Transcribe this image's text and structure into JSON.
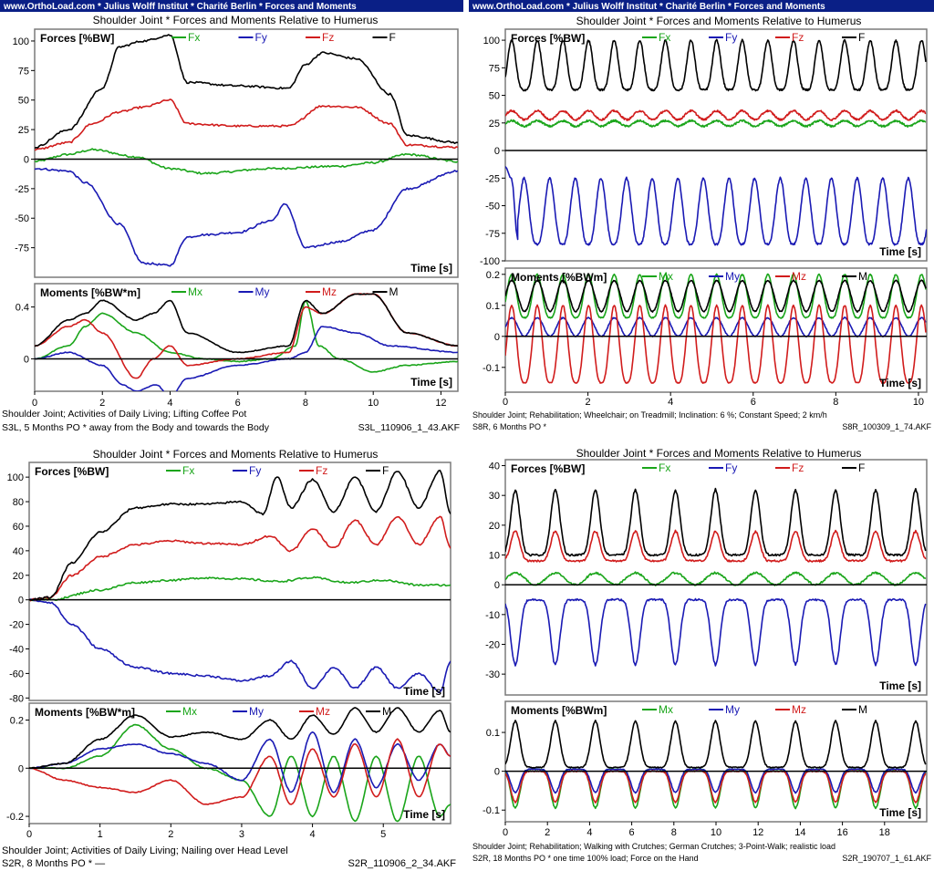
{
  "colors": {
    "fx": "#1aa51a",
    "fy": "#1a1ab4",
    "fz": "#d11c1c",
    "f": "#000000",
    "banner_bg": "#0a1f86",
    "banner_text": "#ffffff",
    "frame": "#7a7a7a"
  },
  "panels": [
    {
      "banner": "www.OrthoLoad.com * Julius Wolff Institut * Charité Berlin * Forces and Moments",
      "title": "Shoulder Joint * Forces and Moments  Relative to Humerus",
      "footer_line1": "Shoulder Joint; Activities of Daily Living; Lifting Coffee Pot",
      "footer_line2_left": "S3L, 5 Months PO  *  away from the Body and towards the Body",
      "footer_line2_right": "S3L_110906_1_43.AKF"
    },
    {
      "banner": "www.OrthoLoad.com * Julius Wolff Institut * Charité Berlin * Forces and Moments",
      "title": "Shoulder Joint * Forces and Moments  Relative to Humerus",
      "footer_line1": "Shoulder Joint; Rehabilitation; Wheelchair; on Treadmill; Inclination: 6 %; Constant Speed; 2 km/h",
      "footer_line2_left": "S8R, 6 Months PO  *",
      "footer_line2_right": "S8R_100309_1_74.AKF"
    },
    {
      "banner": "",
      "title": "Shoulder Joint * Forces and Moments  Relative to Humerus",
      "footer_line1": "Shoulder Joint; Activities of Daily Living; Nailing over Head Level",
      "footer_line2_left": "S2R, 8 Months PO  * —",
      "footer_line2_right": "S2R_110906_2_34.AKF"
    },
    {
      "banner": "",
      "title": "Shoulder Joint * Forces and Moments  Relative to Humerus",
      "footer_line1": "Shoulder Joint; Rehabilitation; Walking with Crutches; German Crutches; 3-Point-Walk; realistic load",
      "footer_line2_left": "S2R, 18 Months PO  *  one time 100% load; Force on the Hand",
      "footer_line2_right": "S2R_190707_1_61.AKF"
    }
  ],
  "chart_data": [
    {
      "type": "line",
      "title": "Forces [%BW]",
      "xlabel": "Time  [s]",
      "xlim": [
        0,
        12.5
      ],
      "ylim": [
        -100,
        110
      ],
      "yticks": [
        100,
        75,
        50,
        25,
        0,
        -25,
        -50,
        -75
      ],
      "series": [
        {
          "name": "Fx",
          "color": "#1aa51a",
          "x": [
            0,
            1,
            1.7,
            3,
            4,
            5,
            7,
            9,
            10,
            11,
            12.5
          ],
          "y": [
            -2,
            4,
            8,
            2,
            -8,
            -12,
            -8,
            -6,
            -3,
            4,
            -2
          ]
        },
        {
          "name": "Fy",
          "color": "#1a1ab4",
          "x": [
            0,
            1,
            1.5,
            2.5,
            3.2,
            4,
            4.5,
            5,
            6,
            7,
            7.4,
            8,
            9,
            10,
            11,
            12.5
          ],
          "y": [
            -8,
            -10,
            -20,
            -55,
            -88,
            -90,
            -66,
            -64,
            -62,
            -52,
            -38,
            -75,
            -70,
            -60,
            -25,
            -10
          ]
        },
        {
          "name": "Fz",
          "color": "#d11c1c",
          "x": [
            0,
            1,
            1.7,
            2.5,
            3.2,
            4,
            4.5,
            6,
            7.5,
            8.5,
            9.5,
            10.5,
            11,
            12.5
          ],
          "y": [
            8,
            14,
            30,
            40,
            44,
            50,
            30,
            28,
            28,
            45,
            44,
            30,
            12,
            10
          ]
        },
        {
          "name": "F",
          "color": "#000000",
          "x": [
            0,
            1,
            2,
            2.5,
            3.2,
            4,
            4.5,
            6,
            7.5,
            8,
            8.5,
            9.5,
            10.5,
            11,
            12.5
          ],
          "y": [
            10,
            25,
            60,
            95,
            100,
            105,
            65,
            62,
            60,
            80,
            90,
            85,
            55,
            20,
            14
          ]
        }
      ]
    },
    {
      "type": "line",
      "title": "Moments  [%BW*m]",
      "xlabel": "Time  [s]",
      "xlim": [
        0,
        12.5
      ],
      "ylim": [
        -0.25,
        0.58
      ],
      "yticks": [
        0.4,
        0
      ],
      "xticks": [
        0,
        2,
        4,
        6,
        8,
        10,
        12
      ],
      "series": [
        {
          "name": "Mx",
          "color": "#1aa51a",
          "x": [
            0,
            1,
            1.5,
            2,
            3,
            4,
            5,
            6,
            7,
            7.7,
            8,
            8.4,
            9,
            10,
            11,
            12.5
          ],
          "y": [
            0,
            0.1,
            0.25,
            0.35,
            0.2,
            0.05,
            0,
            -0.02,
            0,
            0.1,
            0.45,
            0.1,
            0,
            -0.1,
            -0.05,
            -0.02
          ]
        },
        {
          "name": "My",
          "color": "#1a1ab4",
          "x": [
            0,
            1,
            2,
            2.6,
            3,
            3.6,
            4,
            4.5,
            6,
            7.5,
            8,
            8.5,
            9.5,
            10.5,
            12.5
          ],
          "y": [
            0,
            0.05,
            -0.05,
            -0.2,
            -0.25,
            -0.2,
            -0.3,
            -0.15,
            -0.05,
            0,
            0.05,
            0.25,
            0.2,
            0.1,
            0.05
          ]
        },
        {
          "name": "Mz",
          "color": "#d11c1c",
          "x": [
            0,
            1,
            1.5,
            2,
            3,
            3.5,
            4,
            4.5,
            6,
            7.5,
            8,
            8.5,
            9.5,
            10,
            11,
            12.5
          ],
          "y": [
            0.1,
            0.25,
            0.3,
            0.2,
            -0.15,
            0,
            0.1,
            -0.05,
            0,
            0.05,
            0.4,
            0.35,
            0.5,
            0.5,
            0.2,
            0.1
          ]
        },
        {
          "name": "M",
          "color": "#000000",
          "x": [
            0,
            1,
            1.5,
            2,
            3,
            3.5,
            4,
            4.5,
            6,
            7.5,
            8,
            8.5,
            9.5,
            10,
            11,
            12.5
          ],
          "y": [
            0.1,
            0.3,
            0.35,
            0.45,
            0.3,
            0.35,
            0.45,
            0.2,
            0.05,
            0.1,
            0.45,
            0.35,
            0.5,
            0.5,
            0.2,
            0.1
          ]
        }
      ]
    },
    {
      "type": "line",
      "title": "Forces  [%BW]",
      "xlabel": "Time  [s]",
      "xlim": [
        0,
        10.2
      ],
      "ylim": [
        -100,
        110
      ],
      "yticks": [
        100,
        75,
        50,
        25,
        0,
        -25,
        -50,
        -75,
        -100
      ],
      "series": [
        {
          "name": "Fx",
          "color": "#1aa51a",
          "periodic": {
            "start": 0,
            "end": 10.2,
            "period": 0.62,
            "base": 22,
            "amp": 5,
            "sharp": 1
          }
        },
        {
          "name": "Fy",
          "color": "#1a1ab4",
          "x": [
            0,
            0.15,
            0.3
          ],
          "y": [
            -15,
            -25,
            -80
          ],
          "periodic": {
            "start": 0.3,
            "end": 10.2,
            "period": 0.62,
            "base": -85,
            "amp": 60,
            "sharp": 1.5
          }
        },
        {
          "name": "Fz",
          "color": "#d11c1c",
          "periodic": {
            "start": 0,
            "end": 10.2,
            "period": 0.62,
            "base": 28,
            "amp": 8,
            "sharp": 1
          }
        },
        {
          "name": "F",
          "color": "#000000",
          "periodic": {
            "start": 0,
            "end": 10.2,
            "period": 0.62,
            "base": 55,
            "amp": 45,
            "sharp": 2
          }
        }
      ]
    },
    {
      "type": "line",
      "title": "Moments  [%BWm]",
      "xlabel": "Time  [s]",
      "xlim": [
        0,
        10.2
      ],
      "ylim": [
        -0.18,
        0.22
      ],
      "yticks": [
        0.2,
        0.1,
        0,
        -0.1
      ],
      "xticks": [
        0,
        2,
        4,
        6,
        8,
        10
      ],
      "series": [
        {
          "name": "Mx",
          "color": "#1aa51a",
          "periodic": {
            "start": 0,
            "end": 10.2,
            "period": 0.62,
            "base": 0.06,
            "amp": 0.14,
            "sharp": 1.5
          }
        },
        {
          "name": "My",
          "color": "#1a1ab4",
          "periodic": {
            "start": 0,
            "end": 10.2,
            "period": 0.62,
            "base": 0.0,
            "amp": 0.06,
            "sharp": 1
          }
        },
        {
          "name": "Mz",
          "color": "#d11c1c",
          "periodic": {
            "start": 0,
            "end": 10.2,
            "period": 0.62,
            "base": -0.15,
            "amp": 0.25,
            "sharp": 1.5
          }
        },
        {
          "name": "M",
          "color": "#000000",
          "periodic": {
            "start": 0,
            "end": 10.2,
            "period": 0.62,
            "base": 0.08,
            "amp": 0.1,
            "sharp": 1
          }
        }
      ]
    },
    {
      "type": "line",
      "title": "Forces  [%BW]",
      "xlabel": "Time  [s]",
      "xlim": [
        0,
        5.95
      ],
      "ylim": [
        -82,
        112
      ],
      "yticks": [
        100,
        80,
        60,
        40,
        20,
        0,
        -20,
        -40,
        -60,
        -80
      ],
      "series": [
        {
          "name": "Fx",
          "color": "#1aa51a",
          "x": [
            0,
            0.3,
            1,
            1.5,
            2,
            2.5,
            3,
            3.5,
            4,
            4.5,
            5,
            5.5,
            5.95
          ],
          "y": [
            0,
            0,
            8,
            14,
            16,
            18,
            17,
            15,
            18,
            14,
            16,
            12,
            12
          ]
        },
        {
          "name": "Fy",
          "color": "#1a1ab4",
          "x": [
            0,
            0.3,
            0.6,
            1,
            1.5,
            2,
            2.5,
            3,
            3.4,
            3.7,
            4,
            4.3,
            4.6,
            4.9,
            5.2,
            5.5,
            5.8,
            5.95
          ],
          "y": [
            0,
            -2,
            -20,
            -40,
            -55,
            -60,
            -62,
            -66,
            -62,
            -50,
            -72,
            -55,
            -72,
            -55,
            -72,
            -60,
            -75,
            -50
          ]
        },
        {
          "name": "Fz",
          "color": "#d11c1c",
          "x": [
            0,
            0.3,
            0.6,
            1,
            1.5,
            2,
            2.5,
            3,
            3.4,
            3.7,
            4,
            4.3,
            4.6,
            4.9,
            5.2,
            5.5,
            5.8,
            5.95
          ],
          "y": [
            0,
            2,
            20,
            35,
            45,
            48,
            46,
            45,
            52,
            40,
            58,
            42,
            65,
            45,
            68,
            45,
            68,
            42
          ]
        },
        {
          "name": "F",
          "color": "#000000",
          "x": [
            0,
            0.3,
            0.6,
            1,
            1.5,
            2,
            2.5,
            3,
            3.3,
            3.5,
            3.7,
            4,
            4.3,
            4.6,
            4.9,
            5.2,
            5.5,
            5.8,
            5.95
          ],
          "y": [
            0,
            2,
            30,
            55,
            75,
            78,
            78,
            80,
            70,
            100,
            75,
            98,
            72,
            100,
            72,
            105,
            75,
            105,
            70
          ]
        }
      ]
    },
    {
      "type": "line",
      "title": "Moments  [%BW*m]",
      "xlabel": "Time  [s]",
      "xlim": [
        0,
        5.95
      ],
      "ylim": [
        -0.23,
        0.27
      ],
      "yticks": [
        0.2,
        0,
        -0.2
      ],
      "xticks": [
        0,
        1,
        2,
        3,
        4,
        5
      ],
      "series": [
        {
          "name": "Mx",
          "color": "#1aa51a",
          "x": [
            0,
            0.5,
            1,
            1.5,
            2,
            2.5,
            3,
            3.4,
            3.7,
            4,
            4.3,
            4.6,
            4.9,
            5.2,
            5.5,
            5.8,
            5.95
          ],
          "y": [
            0,
            0,
            0.05,
            0.18,
            0.08,
            0,
            -0.05,
            -0.2,
            0.05,
            -0.2,
            0.05,
            -0.22,
            0.05,
            -0.22,
            0.05,
            -0.2,
            -0.15
          ]
        },
        {
          "name": "My",
          "color": "#1a1ab4",
          "x": [
            0,
            0.5,
            1,
            1.5,
            2,
            2.5,
            3,
            3.4,
            3.7,
            4,
            4.3,
            4.6,
            4.9,
            5.2,
            5.5,
            5.8,
            5.95
          ],
          "y": [
            0,
            0.02,
            0.08,
            0.1,
            0.06,
            0.02,
            -0.05,
            0.12,
            -0.1,
            0.15,
            -0.1,
            0.12,
            -0.08,
            0.1,
            -0.05,
            0.1,
            0.05
          ]
        },
        {
          "name": "Mz",
          "color": "#d11c1c",
          "x": [
            0,
            0.5,
            1,
            1.5,
            2,
            2.5,
            3,
            3.4,
            3.7,
            4,
            4.3,
            4.6,
            4.9,
            5.2,
            5.5,
            5.8,
            5.95
          ],
          "y": [
            0,
            -0.05,
            -0.08,
            -0.1,
            -0.05,
            -0.15,
            -0.12,
            0.05,
            -0.15,
            0.08,
            -0.12,
            0.1,
            -0.12,
            0.12,
            -0.12,
            0.1,
            0.05
          ]
        },
        {
          "name": "M",
          "color": "#000000",
          "x": [
            0,
            0.5,
            1,
            1.5,
            2,
            2.5,
            3,
            3.4,
            3.7,
            4,
            4.3,
            4.6,
            4.9,
            5.2,
            5.5,
            5.8,
            5.95
          ],
          "y": [
            0,
            0.02,
            0.12,
            0.22,
            0.13,
            0.15,
            0.12,
            0.2,
            0.12,
            0.22,
            0.14,
            0.25,
            0.15,
            0.25,
            0.15,
            0.24,
            0.15
          ]
        }
      ]
    },
    {
      "type": "line",
      "title": "Forces  [%BW]",
      "xlabel": "Time  [s]",
      "xlim": [
        0,
        20
      ],
      "ylim": [
        -37,
        42
      ],
      "yticks": [
        40,
        30,
        20,
        10,
        0,
        -10,
        -20,
        -30
      ],
      "series": [
        {
          "name": "Fx",
          "color": "#1aa51a",
          "periodic": {
            "start": 0,
            "end": 20,
            "period": 1.9,
            "base": 0,
            "amp": 4,
            "sharp": 1
          }
        },
        {
          "name": "Fy",
          "color": "#1a1ab4",
          "periodic": {
            "start": 0,
            "end": 20,
            "period": 1.9,
            "base": -5,
            "amp": -22,
            "sharp": 4
          }
        },
        {
          "name": "Fz",
          "color": "#d11c1c",
          "periodic": {
            "start": 0,
            "end": 20,
            "period": 1.9,
            "base": 8,
            "amp": 10,
            "sharp": 4
          }
        },
        {
          "name": "F",
          "color": "#000000",
          "periodic": {
            "start": 0,
            "end": 20,
            "period": 1.9,
            "base": 10,
            "amp": 22,
            "sharp": 4
          }
        }
      ]
    },
    {
      "type": "line",
      "title": "Moments  [%BWm]",
      "xlabel": "Time  [s]",
      "xlim": [
        0,
        20
      ],
      "ylim": [
        -0.13,
        0.18
      ],
      "yticks": [
        0.1,
        0,
        -0.1
      ],
      "xticks": [
        0,
        2,
        4,
        6,
        8,
        10,
        12,
        14,
        16,
        18
      ],
      "series": [
        {
          "name": "Mx",
          "color": "#1aa51a",
          "periodic": {
            "start": 0,
            "end": 20,
            "period": 1.9,
            "base": 0.005,
            "amp": -0.1,
            "sharp": 4
          }
        },
        {
          "name": "My",
          "color": "#1a1ab4",
          "periodic": {
            "start": 0,
            "end": 20,
            "period": 1.9,
            "base": 0.005,
            "amp": -0.06,
            "sharp": 4
          }
        },
        {
          "name": "Mz",
          "color": "#d11c1c",
          "periodic": {
            "start": 0,
            "end": 20,
            "period": 1.9,
            "base": 0.0,
            "amp": -0.08,
            "sharp": 4
          }
        },
        {
          "name": "M",
          "color": "#000000",
          "periodic": {
            "start": 0,
            "end": 20,
            "period": 1.9,
            "base": 0.01,
            "amp": 0.12,
            "sharp": 4
          }
        }
      ]
    }
  ]
}
